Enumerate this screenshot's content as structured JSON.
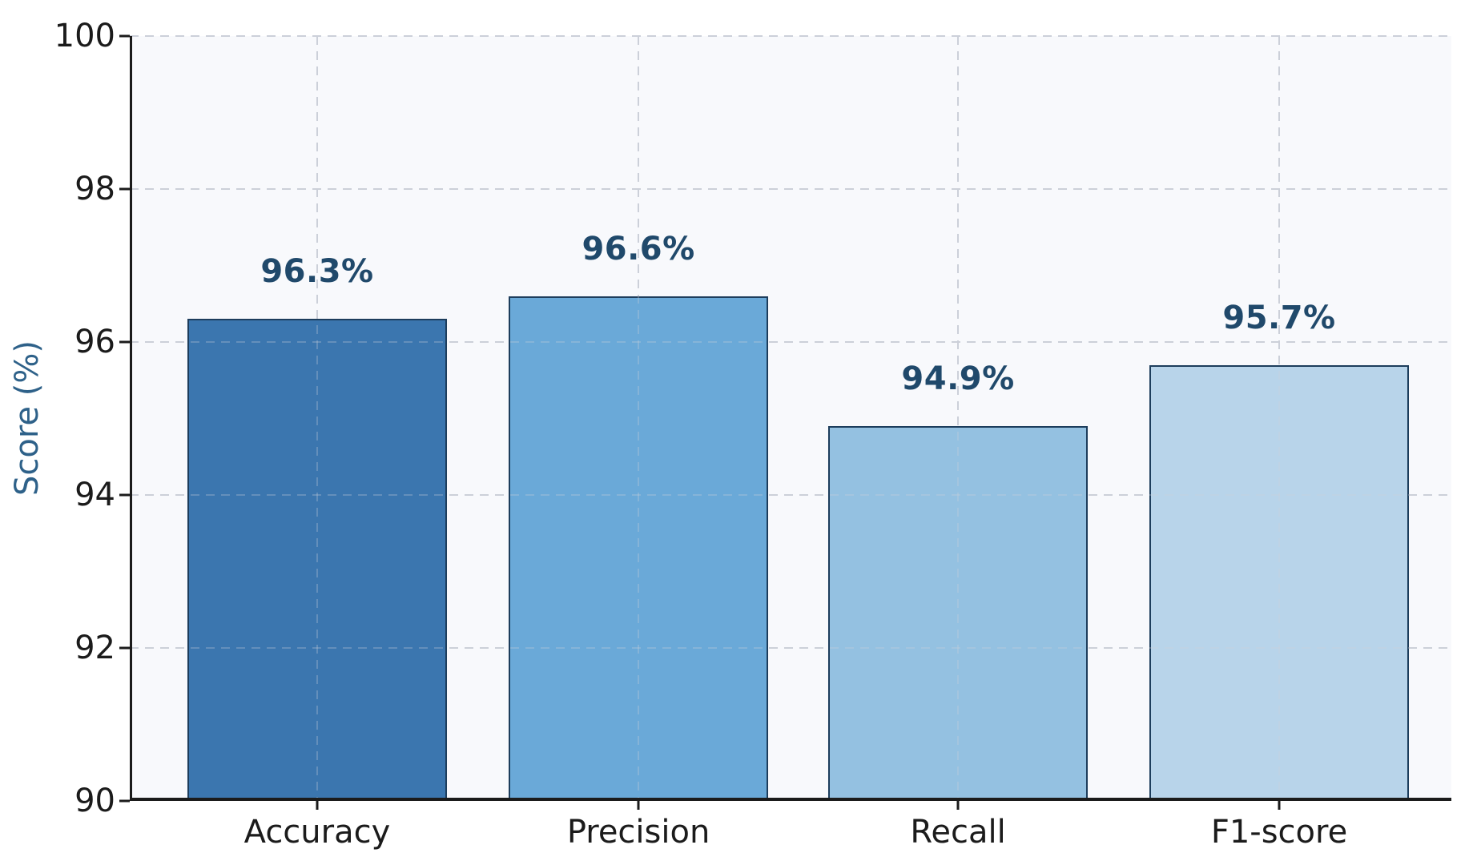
{
  "chart_data": {
    "type": "bar",
    "categories": [
      "Accuracy",
      "Precision",
      "Recall",
      "F1-score"
    ],
    "values": [
      96.3,
      96.6,
      94.9,
      95.7
    ],
    "value_labels": [
      "96.3%",
      "96.6%",
      "94.9%",
      "95.7%"
    ],
    "xlabel": "",
    "ylabel": "Score (%)",
    "ylim": [
      90,
      100
    ],
    "yticks": [
      90,
      92,
      94,
      96,
      98,
      100
    ],
    "ytick_labels": [
      "90",
      "92",
      "94",
      "96",
      "98",
      "100"
    ],
    "grid": "dashed gridlines: horizontal at each y tick, vertical at each bar center",
    "legend": "none",
    "colors": {
      "bar_fills": [
        "#3b76af",
        "#6aa9d8",
        "#94c1e1",
        "#b8d4ea"
      ],
      "bar_edge": "#1d3d5c",
      "value_label": "#20496b",
      "ylabel": "#2e6189",
      "axes_background": "#f8f9fc",
      "figure_background": "#ffffff",
      "gridline": "#ccd0d9",
      "tick_label": "#1b1b1b",
      "spine": "#1b1b1b"
    }
  }
}
